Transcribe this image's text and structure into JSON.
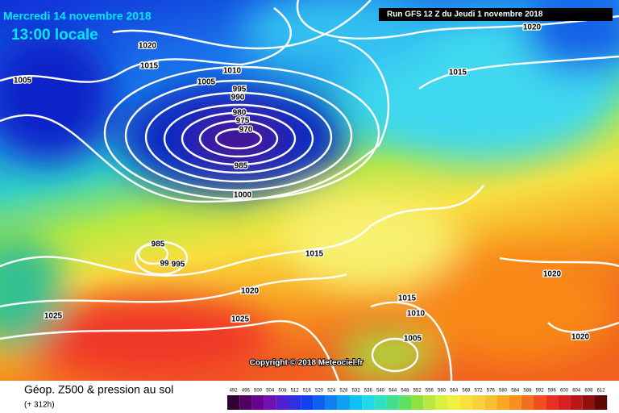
{
  "header": {
    "date": "Mercredi 14 novembre 2018",
    "time": "13:00 locale",
    "run": "Run GFS 12 Z du Jeudi 1 novembre 2018"
  },
  "isobar_labels": [
    1020,
    1015,
    1005,
    1010,
    1005,
    995,
    990,
    980,
    975,
    970,
    985,
    1000,
    985,
    99,
    995,
    1015,
    1020,
    1025,
    1025,
    1015,
    1010,
    1005,
    1020,
    1020,
    1015,
    1020
  ],
  "copyright": "Copyright © 2018 Meteociel.fr",
  "footer": {
    "title": "Géop. Z500 & pression au sol",
    "lead": "(+ 312h)"
  },
  "legend": {
    "values": [
      492,
      496,
      500,
      504,
      508,
      512,
      516,
      520,
      524,
      528,
      532,
      536,
      540,
      544,
      548,
      552,
      556,
      560,
      564,
      568,
      572,
      576,
      580,
      584,
      588,
      592,
      596,
      600,
      604,
      608,
      612
    ]
  }
}
